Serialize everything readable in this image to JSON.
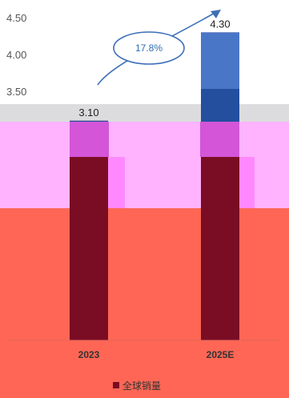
{
  "chart_data": {
    "type": "bar",
    "title": "",
    "xlabel": "",
    "ylabel": "",
    "categories": [
      "2023",
      "2025E"
    ],
    "series": [
      {
        "name": "全球销量",
        "values": [
          3.1,
          4.3
        ],
        "color": "#7a0d24"
      }
    ],
    "data_labels": [
      "3.10",
      "4.30"
    ],
    "y_ticks": [
      "4.50",
      "4.00",
      "3.50"
    ],
    "ylim": [
      0,
      4.5
    ],
    "grid": false,
    "legend": "bottom",
    "annotation": {
      "text": "17.8%",
      "color": "#2f6fb3"
    }
  },
  "colors": {
    "band_gray": "#dcdcde",
    "band_pink": "#ffb3ff",
    "band_magenta": "#d455d8",
    "band_red": "#ff6655",
    "bar_top_blue": "#4a76c8",
    "bar_top_dark_blue": "#234f9e",
    "axis": "#e06b5a"
  }
}
